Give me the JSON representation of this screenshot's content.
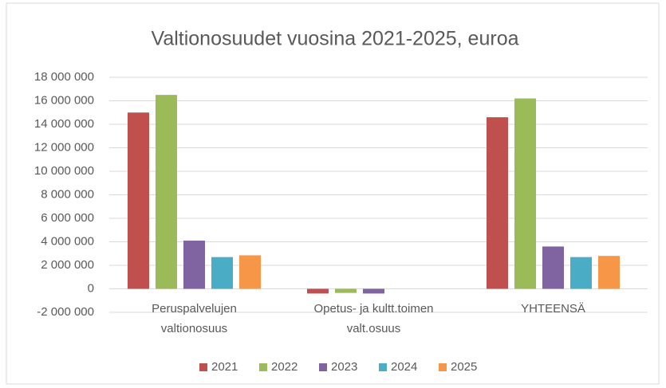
{
  "chart_data": {
    "type": "bar",
    "title": "Valtionosuudet vuosina 2021-2025, euroa",
    "categories": [
      [
        "Peruspalvelujen",
        "valtionosuus"
      ],
      [
        "Opetus- ja kultt.toimen",
        "valt.osuus"
      ],
      [
        "YHTEENSÄ"
      ]
    ],
    "series": [
      {
        "name": "2021",
        "color": "#c0504d",
        "values": [
          15000000,
          -400000,
          14600000
        ]
      },
      {
        "name": "2022",
        "color": "#9bbb59",
        "values": [
          16500000,
          -350000,
          16200000
        ]
      },
      {
        "name": "2023",
        "color": "#8064a2",
        "values": [
          4100000,
          -400000,
          3600000
        ]
      },
      {
        "name": "2024",
        "color": "#4bacc6",
        "values": [
          2700000,
          0,
          2700000
        ]
      },
      {
        "name": "2025",
        "color": "#f79646",
        "values": [
          2850000,
          0,
          2800000
        ]
      }
    ],
    "ylim": [
      -2000000,
      18000000
    ],
    "yticks": [
      {
        "value": -2000000,
        "label": "-2 000 000"
      },
      0,
      {
        "value": 2000000,
        "label": "2 000 000"
      },
      {
        "value": 4000000,
        "label": "4 000 000"
      },
      {
        "value": 6000000,
        "label": "6 000 000"
      },
      {
        "value": 8000000,
        "label": "8 000 000"
      },
      {
        "value": 10000000,
        "label": "10 000 000"
      },
      {
        "value": 12000000,
        "label": "12 000 000"
      },
      {
        "value": 14000000,
        "label": "14 000 000"
      },
      {
        "value": 16000000,
        "label": "16 000 000"
      },
      {
        "value": 18000000,
        "label": "18 000 000"
      }
    ],
    "grid": true,
    "legend": "bottom"
  }
}
